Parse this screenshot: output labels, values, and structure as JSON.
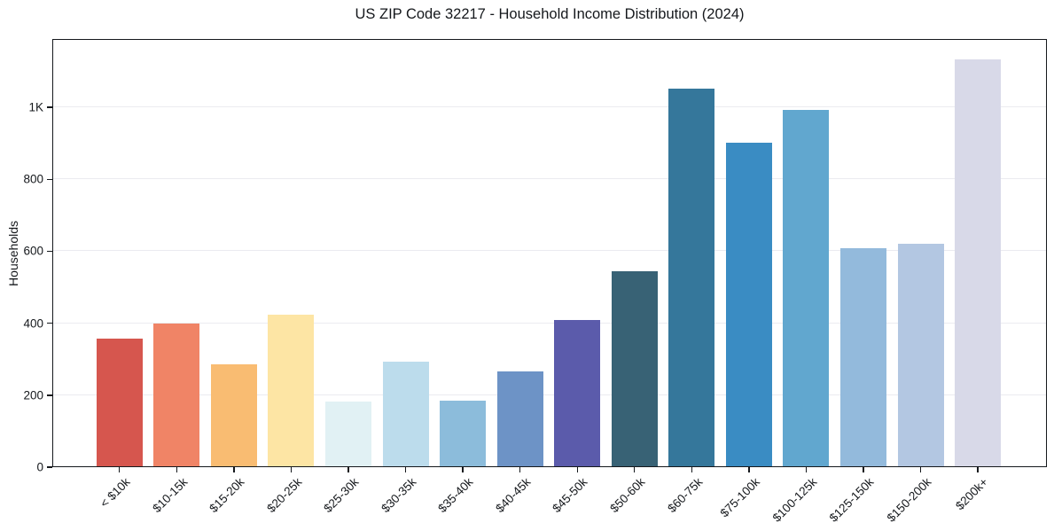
{
  "chart_data": {
    "type": "bar",
    "title": "US ZIP Code 32217 - Household Income Distribution (2024)",
    "xlabel": "",
    "ylabel": "Households",
    "categories": [
      "< $10k",
      "$10-15k",
      "$15-20k",
      "$20-25k",
      "$25-30k",
      "$30-35k",
      "$35-40k",
      "$40-45k",
      "$45-50k",
      "$50-60k",
      "$60-75k",
      "$75-100k",
      "$100-125k",
      "$125-150k",
      "$150-200k",
      "$200k+"
    ],
    "values": [
      357,
      399,
      287,
      425,
      183,
      294,
      186,
      267,
      410,
      545,
      1052,
      903,
      993,
      608,
      620,
      1133
    ],
    "bar_colors": [
      "#d6564e",
      "#f08466",
      "#f9bc72",
      "#fde5a4",
      "#e1f1f4",
      "#bcdcec",
      "#8cbcdb",
      "#6d93c6",
      "#5b5bab",
      "#386275",
      "#35779b",
      "#3a8cc3",
      "#61a7cf",
      "#93badc",
      "#b3c7e2",
      "#d8d9e8"
    ],
    "ylim": [
      0,
      1190
    ],
    "yticks": [
      0,
      200,
      400,
      600,
      800,
      1000
    ],
    "ytick_labels": [
      "0",
      "200",
      "400",
      "600",
      "800",
      "1K"
    ],
    "grid": true,
    "grid_color": "#ebebf0",
    "background_color": "#ffffff",
    "spine_color": "#15181c",
    "legend": "none",
    "bar_orientation": "vertical",
    "xtick_rotation_deg": 45
  }
}
